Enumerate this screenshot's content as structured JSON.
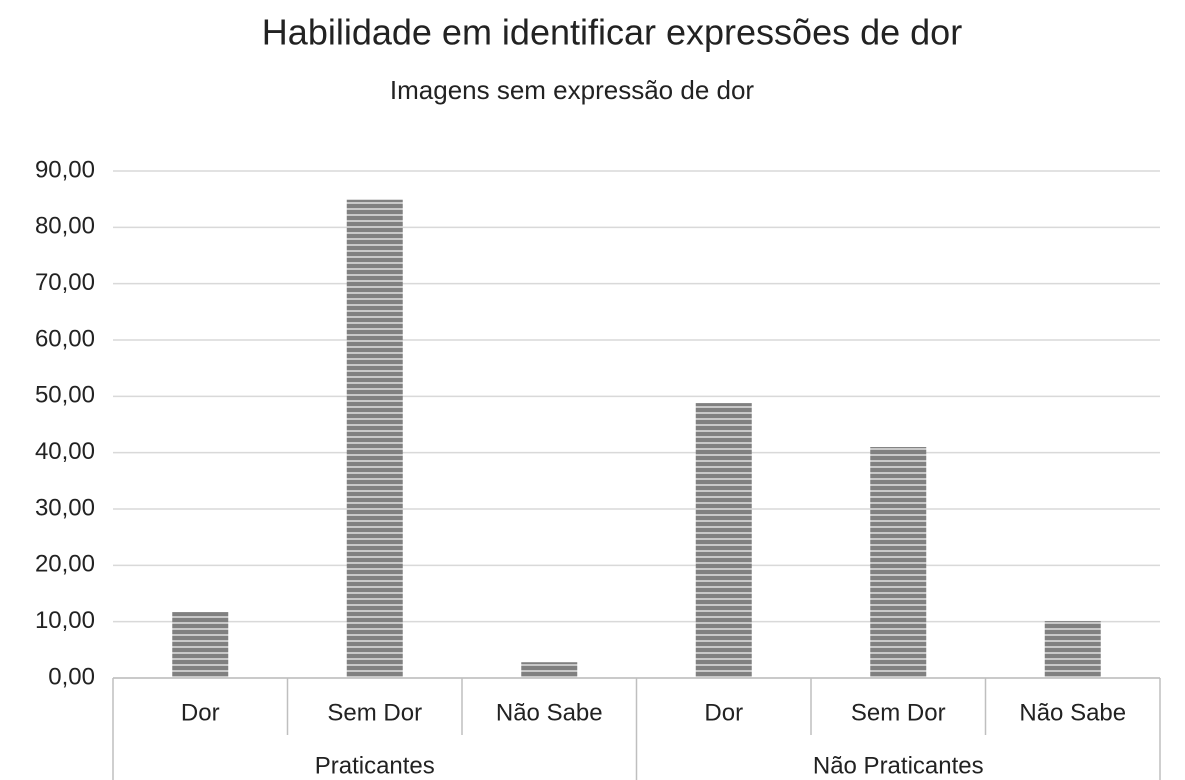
{
  "chart_data": {
    "type": "bar",
    "title": "Habilidade em identificar expressões de dor",
    "subtitle": "Imagens sem expressão de dor",
    "groups": [
      {
        "label": "Praticantes",
        "categories": [
          "Dor",
          "Sem Dor",
          "Não Sabe"
        ],
        "values": [
          11.7,
          84.9,
          2.8
        ]
      },
      {
        "label": "Não Praticantes",
        "categories": [
          "Dor",
          "Sem Dor",
          "Não Sabe"
        ],
        "values": [
          48.8,
          41.0,
          10.1
        ]
      }
    ],
    "color": "#808080",
    "ylim": [
      0,
      90
    ],
    "yticks": [
      {
        "value": 0,
        "label": "0,00"
      },
      {
        "value": 10,
        "label": "10,00"
      },
      {
        "value": 20,
        "label": "20,00"
      },
      {
        "value": 30,
        "label": "30,00"
      },
      {
        "value": 40,
        "label": "40,00"
      },
      {
        "value": 50,
        "label": "50,00"
      },
      {
        "value": 60,
        "label": "60,00"
      },
      {
        "value": 70,
        "label": "70,00"
      },
      {
        "value": 80,
        "label": "80,00"
      },
      {
        "value": 90,
        "label": "90,00"
      }
    ],
    "grid": true
  }
}
